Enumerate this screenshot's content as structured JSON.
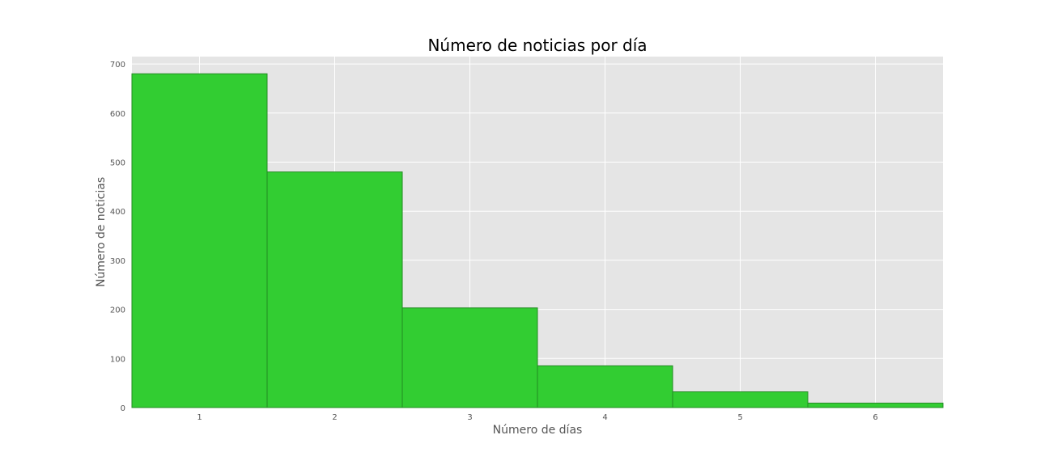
{
  "chart_data": {
    "type": "bar",
    "title": "Número de noticias por día",
    "xlabel": "Número de días",
    "ylabel": "Número de noticias",
    "categories": [
      "1",
      "2",
      "3",
      "4",
      "5",
      "6"
    ],
    "values": [
      680,
      480,
      203,
      85,
      32,
      9
    ],
    "xlim": [
      0.5,
      6.5
    ],
    "ylim": [
      0,
      715
    ],
    "yticks": [
      0,
      100,
      200,
      300,
      400,
      500,
      600,
      700
    ],
    "grid": true,
    "legend": "none",
    "colors": {
      "bar_fill": "#32cd32",
      "bar_edge": "#228b22",
      "plot_background": "#e5e5e5",
      "grid": "#ffffff",
      "title": "#000000",
      "axis_label": "#555555",
      "tick_label": "#555555"
    }
  }
}
